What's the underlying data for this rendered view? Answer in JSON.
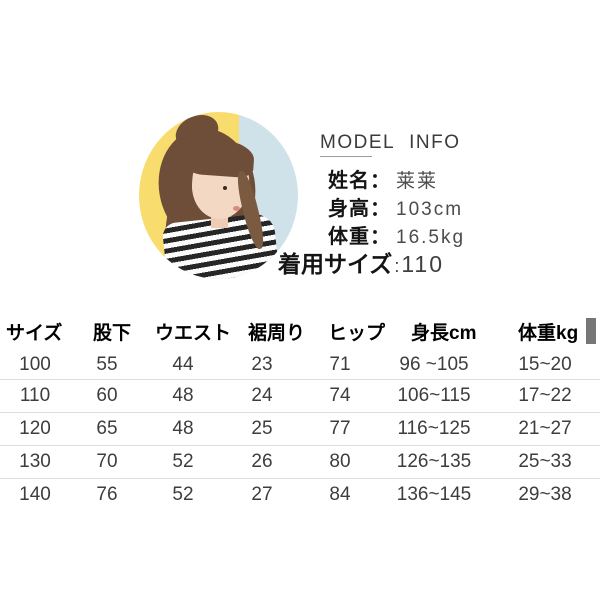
{
  "model_info": {
    "title": "MODEL INFO",
    "fields": [
      {
        "label": "姓名：",
        "value": "莱莱"
      },
      {
        "label": "身高：",
        "value": "103cm"
      },
      {
        "label": "体重：",
        "value": "16.5kg"
      }
    ],
    "wear_size_label": "着用サイズ",
    "wear_size_colon": ":",
    "wear_size_value": "110"
  },
  "size_table": {
    "headers": [
      "サイズ",
      "股下",
      "ウエスト",
      "裾周り",
      "ヒップ",
      "身長cm",
      "体重kg"
    ],
    "rows": [
      [
        "100",
        "55",
        "44",
        "23",
        "71",
        "96 ~105",
        "15~20"
      ],
      [
        "110",
        "60",
        "48",
        "24",
        "74",
        "106~115",
        "17~22"
      ],
      [
        "120",
        "65",
        "48",
        "25",
        "77",
        "116~125",
        "21~27"
      ],
      [
        "130",
        "70",
        "52",
        "26",
        "80",
        "126~135",
        "25~33"
      ],
      [
        "140",
        "76",
        "52",
        "27",
        "84",
        "136~145",
        "29~38"
      ]
    ]
  },
  "colors": {
    "photo_yellow": "#F8DC6E",
    "photo_blue": "#CFE2EA",
    "table_header_bg": "#C7C7C7",
    "table_header_endcap": "#767676",
    "row_divider": "#DDDDDD"
  }
}
